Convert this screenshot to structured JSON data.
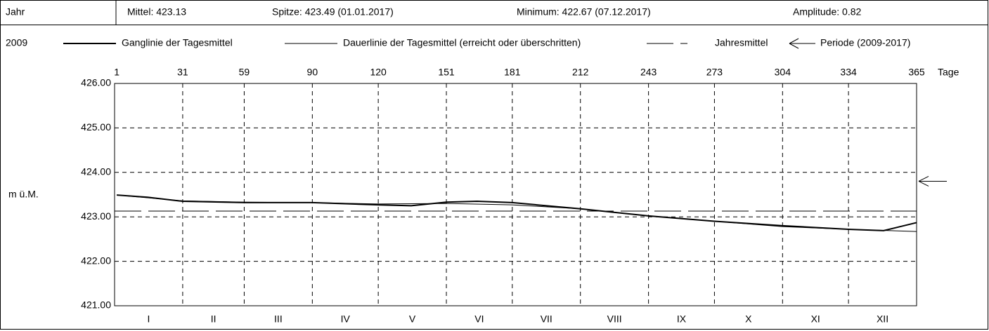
{
  "header": {
    "label": "Jahr",
    "stats": [
      "Mittel: 423.13",
      "Spitze: 423.49 (01.01.2017)",
      "Minimum: 422.67 (07.12.2017)",
      "Amplitude: 0.82"
    ]
  },
  "chart_data": {
    "type": "line",
    "year_label": "2009",
    "xlabel": "Tage",
    "ylabel": "m ü.M.",
    "xlim": [
      0,
      365
    ],
    "xticks": [
      1,
      31,
      59,
      90,
      120,
      151,
      181,
      212,
      243,
      273,
      304,
      334,
      365
    ],
    "ylim": [
      421,
      426
    ],
    "yticks": [
      {
        "value": 421,
        "label": "421.00"
      },
      {
        "value": 422,
        "label": "422.00"
      },
      {
        "value": 423,
        "label": "423.00"
      },
      {
        "value": 424,
        "label": "424.00"
      },
      {
        "value": 425,
        "label": "425.00"
      },
      {
        "value": 426,
        "label": "426.00"
      }
    ],
    "categories": [
      "I",
      "II",
      "III",
      "IV",
      "V",
      "VI",
      "VII",
      "VIII",
      "IX",
      "X",
      "XI",
      "XII"
    ],
    "grid": true,
    "series": [
      {
        "name": "Ganglinie der Tagesmittel",
        "color": "#000000",
        "width": 2,
        "x": [
          1,
          15,
          31,
          59,
          90,
          120,
          135,
          151,
          165,
          181,
          212,
          243,
          273,
          304,
          334,
          350,
          365
        ],
        "values": [
          423.49,
          423.44,
          423.35,
          423.32,
          423.32,
          423.27,
          423.25,
          423.33,
          423.35,
          423.32,
          423.18,
          423.02,
          422.9,
          422.8,
          422.72,
          422.69,
          422.87
        ]
      },
      {
        "name": "Dauerlinie der Tagesmittel (erreicht oder überschritten)",
        "color": "#000000",
        "width": 1,
        "x": [
          1,
          31,
          59,
          90,
          120,
          151,
          181,
          212,
          243,
          273,
          304,
          334,
          365
        ],
        "values": [
          423.49,
          423.36,
          423.33,
          423.32,
          423.29,
          423.3,
          423.27,
          423.18,
          423.02,
          422.9,
          422.78,
          422.72,
          422.67
        ]
      },
      {
        "name": "Jahresmittel",
        "color": "#000000",
        "y": 423.13
      },
      {
        "name": "Periode (2009-2017)",
        "color": "#000000",
        "y": 423.8
      }
    ]
  }
}
